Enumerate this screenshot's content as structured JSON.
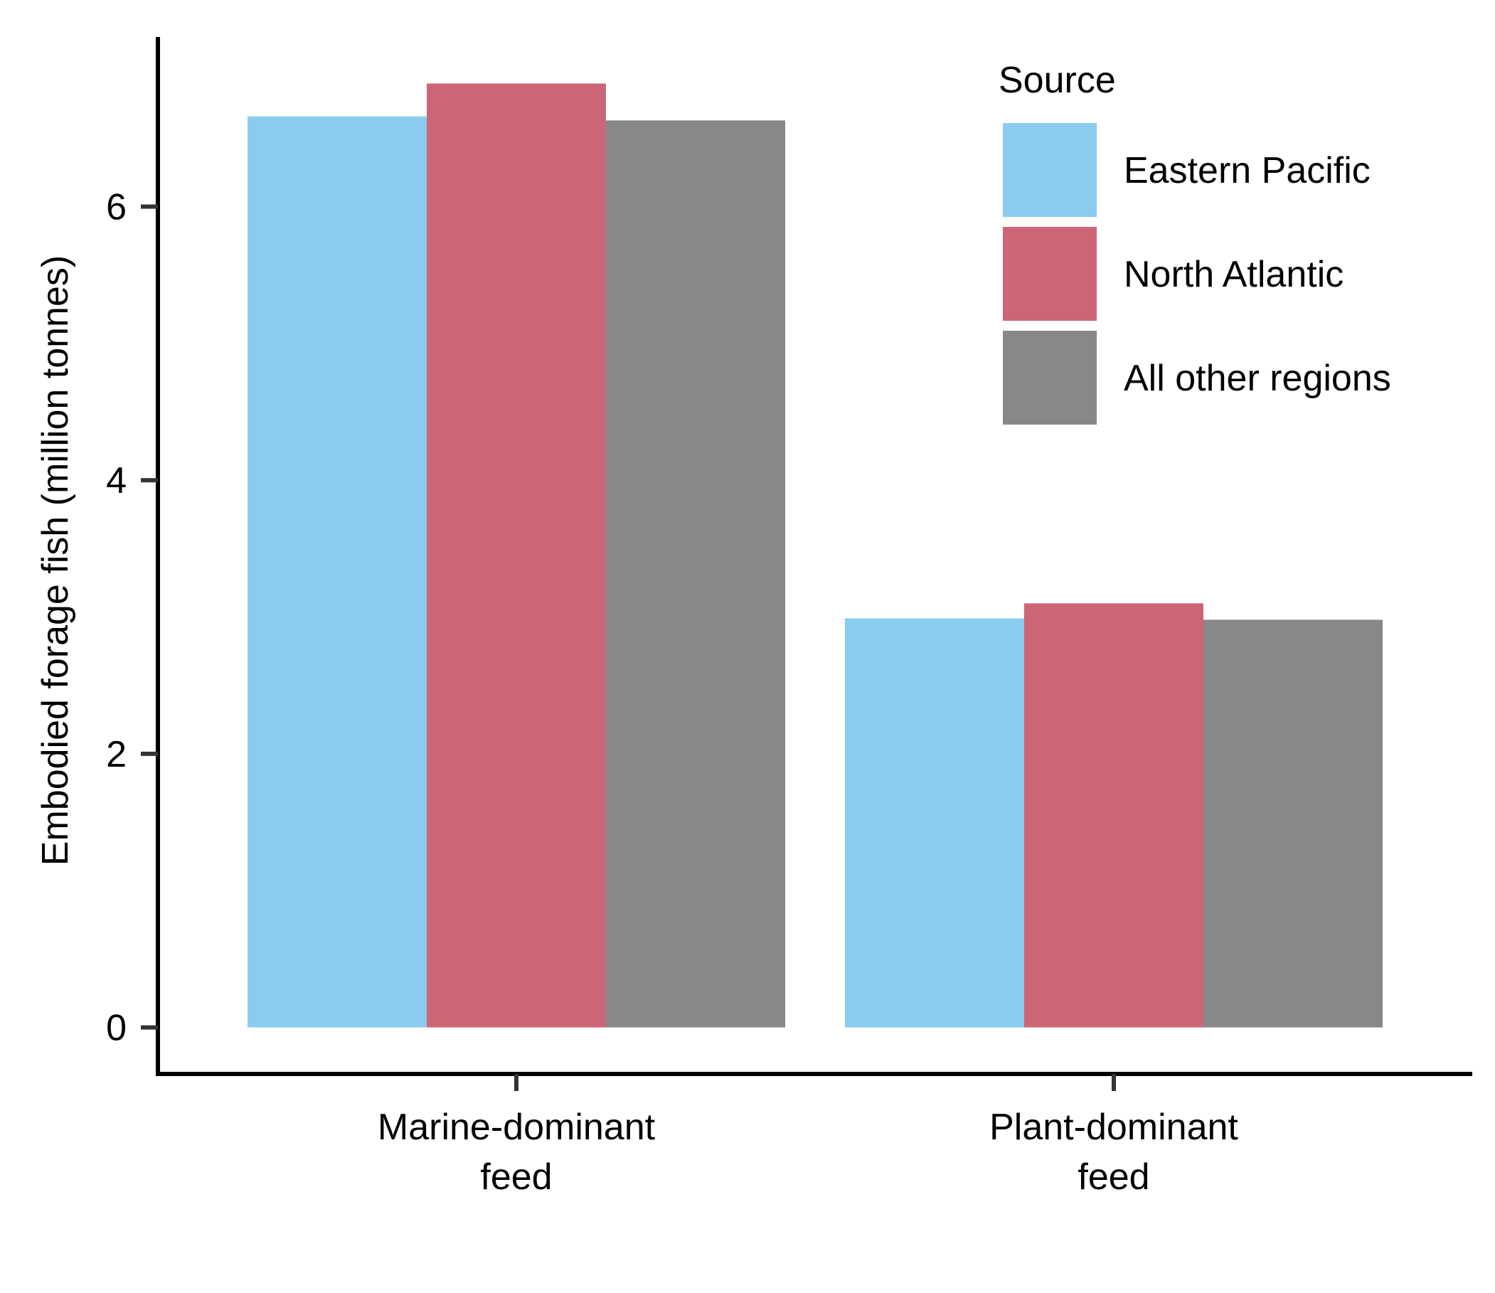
{
  "chart_data": {
    "type": "bar",
    "categories": [
      [
        "Marine-dominant",
        "feed"
      ],
      [
        "Plant-dominant",
        "feed"
      ]
    ],
    "series": [
      {
        "name": "Eastern Pacific",
        "color": "#89CCEE",
        "values": [
          6.66,
          2.99
        ]
      },
      {
        "name": "North Atlantic",
        "color": "#CC6677",
        "values": [
          6.9,
          3.1
        ]
      },
      {
        "name": "All other regions",
        "color": "#888888",
        "values": [
          6.63,
          2.98
        ]
      }
    ],
    "xlabel": "",
    "ylabel": "Embodied forage fish (million tonnes)",
    "ylim": [
      -0.34,
      7.24
    ],
    "yticks": [
      0,
      2,
      4,
      6
    ],
    "grid": false,
    "legend": {
      "title": "Source",
      "position": "top-right"
    }
  }
}
